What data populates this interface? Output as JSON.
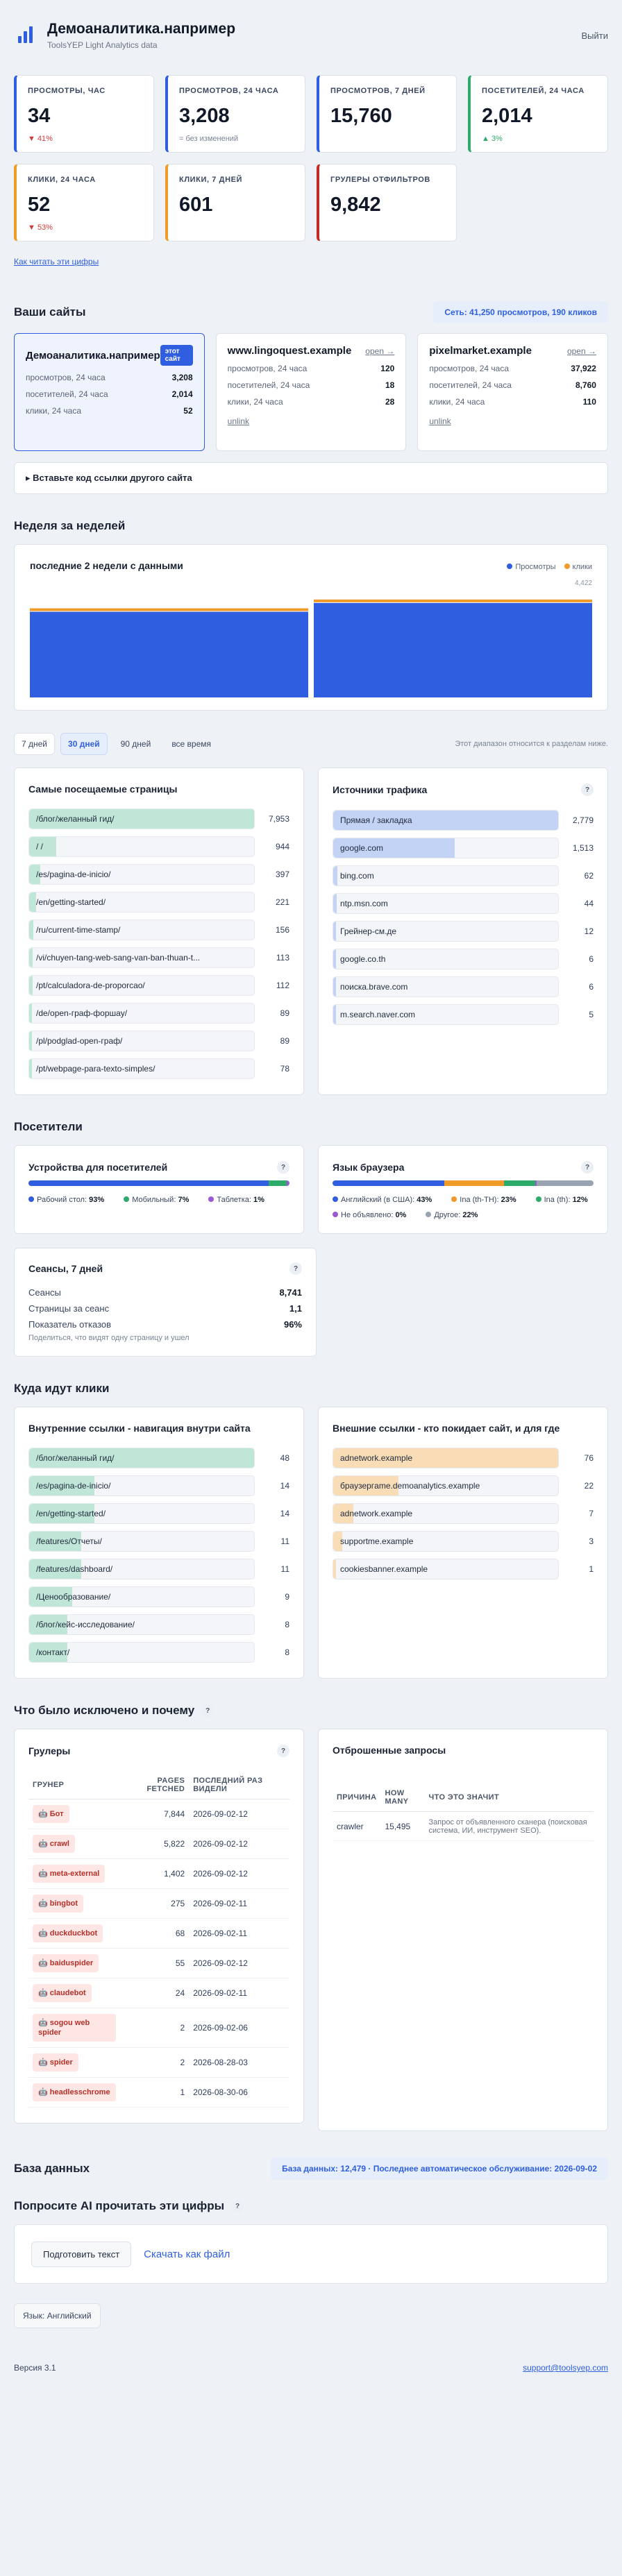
{
  "header": {
    "brand": "Демоаналитика.например",
    "sub": "ToolsYEP Light Analytics data",
    "logout": "Выйти"
  },
  "kpis": [
    {
      "label": "ПРОСМОТРЫ, ЧАС",
      "value": "34",
      "delta": "▼ 41%",
      "trend": "down",
      "accent": "#2f5fe0"
    },
    {
      "label": "ПРОСМОТРОВ, 24 ЧАСА",
      "value": "3,208",
      "delta": "= без изменений",
      "trend": "flat",
      "accent": "#2f5fe0"
    },
    {
      "label": "ПРОСМОТРОВ, 7 ДНЕЙ",
      "value": "15,760",
      "delta": "",
      "trend": "none",
      "accent": "#2f5fe0"
    },
    {
      "label": "ПОСЕТИТЕЛЕЙ, 24 ЧАСА",
      "value": "2,014",
      "delta": "▲ 3%",
      "trend": "up",
      "accent": "#2eaa6a"
    },
    {
      "label": "КЛИКИ, 24 ЧАСА",
      "value": "52",
      "delta": "▼ 53%",
      "trend": "down",
      "accent": "#f09a2a"
    },
    {
      "label": "КЛИКИ, 7 ДНЕЙ",
      "value": "601",
      "delta": "",
      "trend": "none",
      "accent": "#f09a2a"
    },
    {
      "label": "ГРУЛЕРЫ ОТФИЛЬТРОВ",
      "value": "9,842",
      "delta": "",
      "trend": "none",
      "accent": "#c62828"
    }
  ],
  "how_link": "Как читать эти цифры",
  "sites": {
    "title": "Ваши сайты",
    "network": "Сеть: 41,250 просмотров, 190 кликов",
    "items": [
      {
        "name": "Демоаналитика.например",
        "badge": "этот сайт",
        "rows": [
          [
            "просмотров, 24 часа",
            "3,208"
          ],
          [
            "посетителей, 24 часа",
            "2,014"
          ],
          [
            "клики, 24 часа",
            "52"
          ]
        ]
      },
      {
        "name": "www.lingoquest.example",
        "open": "open →",
        "rows": [
          [
            "просмотров, 24 часа",
            "120"
          ],
          [
            "посетителей, 24 часа",
            "18"
          ],
          [
            "клики, 24 часа",
            "28"
          ]
        ],
        "unlink": "unlink"
      },
      {
        "name": "pixelmarket.example",
        "open": "open →",
        "rows": [
          [
            "просмотров, 24 часа",
            "37,922"
          ],
          [
            "посетителей, 24 часа",
            "8,760"
          ],
          [
            "клики, 24 часа",
            "110"
          ]
        ],
        "unlink": "unlink"
      }
    ],
    "embed": "▸ Вставьте код ссылки другого сайта"
  },
  "week": {
    "title": "Неделя за неделей",
    "chart_title": "последние 2 недели с данными",
    "legend_views": "Просмотры",
    "legend_clicks": "клики",
    "ymax": "4,422"
  },
  "chart_data": {
    "type": "bar",
    "categories": [
      "",
      ""
    ],
    "series": [
      {
        "name": "Просмотры",
        "values": [
          3900,
          4300
        ]
      },
      {
        "name": "клики",
        "values": [
          95,
          110
        ]
      }
    ],
    "ylim": [
      0,
      4422
    ]
  },
  "range": {
    "tabs": [
      "7 дней",
      "30 дней",
      "90 дней",
      "все время"
    ],
    "active": 1,
    "note": "Этот диапазон относится к разделам ниже."
  },
  "pages": {
    "title": "Самые посещаемые страницы",
    "rows": [
      {
        "label": "/блог/желанный гид/",
        "value": "7,953",
        "pct": 100
      },
      {
        "label": "/ /",
        "value": "944",
        "pct": 12
      },
      {
        "label": "/es/pagina-de-inicio/",
        "value": "397",
        "pct": 5
      },
      {
        "label": "/en/getting-started/",
        "value": "221",
        "pct": 3
      },
      {
        "label": "/ru/current-time-stamp/",
        "value": "156",
        "pct": 2
      },
      {
        "label": "/vi/chuyen-tang-web-sang-van-ban-thuan-t...",
        "value": "113",
        "pct": 1.5
      },
      {
        "label": "/pt/calculadora-de-proporcao/",
        "value": "112",
        "pct": 1.4
      },
      {
        "label": "/de/open-граф-форшау/",
        "value": "89",
        "pct": 1.1
      },
      {
        "label": "/pl/podglad-open-граф/",
        "value": "89",
        "pct": 1.1
      },
      {
        "label": "/pt/webpage-para-texto-simples/",
        "value": "78",
        "pct": 1
      }
    ]
  },
  "sources": {
    "title": "Источники трафика",
    "help": "?",
    "rows": [
      {
        "label": "Прямая / закладка",
        "value": "2,779",
        "pct": 100
      },
      {
        "label": "google.com",
        "value": "1,513",
        "pct": 54
      },
      {
        "label": "bing.com",
        "value": "62",
        "pct": 2
      },
      {
        "label": "ntp.msn.com",
        "value": "44",
        "pct": 1.6
      },
      {
        "label": "Грейнер-см.де",
        "value": "12",
        "pct": 0.5
      },
      {
        "label": "google.co.th",
        "value": "6",
        "pct": 0.3
      },
      {
        "label": "поиска.brave.com",
        "value": "6",
        "pct": 0.3
      },
      {
        "label": "m.search.naver.com",
        "value": "5",
        "pct": 0.2
      }
    ]
  },
  "visitors": {
    "title": "Посетители",
    "devices": {
      "title": "Устройства для посетителей",
      "help": "?",
      "segments": [
        {
          "label": "Рабочий стол:",
          "pct": "93%",
          "value": 93,
          "color": "#2f5fe0"
        },
        {
          "label": "Мобильный:",
          "pct": "7%",
          "value": 7,
          "color": "#2eaa6a"
        },
        {
          "label": "Таблетка:",
          "pct": "1%",
          "value": 1,
          "color": "#9b59d0"
        }
      ]
    },
    "langs": {
      "title": "Язык браузера",
      "help": "?",
      "segments": [
        {
          "label": "Английский (в США):",
          "pct": "43%",
          "value": 43,
          "color": "#2f5fe0"
        },
        {
          "label": "Ina (th-TH):",
          "pct": "23%",
          "value": 23,
          "color": "#f09a2a"
        },
        {
          "label": "Ina (th):",
          "pct": "12%",
          "value": 12,
          "color": "#2eaa6a"
        },
        {
          "label": "Не объявлено:",
          "pct": "0%",
          "value": 0.5,
          "color": "#9b59d0"
        },
        {
          "label": "Другое:",
          "pct": "22%",
          "value": 22,
          "color": "#9aa3b2"
        }
      ]
    },
    "sessions": {
      "title": "Сеансы, 7 дней",
      "help": "?",
      "rows": [
        [
          "Сеансы",
          "8,741"
        ],
        [
          "Страницы за сеанс",
          "1,1"
        ],
        [
          "Показатель отказов",
          "96%"
        ]
      ],
      "note": "Поделиться, что видят одну страницу и ушел"
    }
  },
  "clicks": {
    "title": "Куда идут клики",
    "internal": {
      "title": "Внутренние ссылки - навигация внутри сайта",
      "rows": [
        {
          "label": "/блог/желанный гид/",
          "value": "48",
          "pct": 100
        },
        {
          "label": "/es/pagina-de-inicio/",
          "value": "14",
          "pct": 29
        },
        {
          "label": "/en/getting-started/",
          "value": "14",
          "pct": 29
        },
        {
          "label": "/features/Отчеты/",
          "value": "11",
          "pct": 23
        },
        {
          "label": "/features/dashboard/",
          "value": "11",
          "pct": 23
        },
        {
          "label": "/Ценообразование/",
          "value": "9",
          "pct": 19
        },
        {
          "label": "/блог/кейс-исследование/",
          "value": "8",
          "pct": 17
        },
        {
          "label": "/контакт/",
          "value": "8",
          "pct": 17
        }
      ]
    },
    "external": {
      "title": "Внешние ссылки - кто покидает сайт, и для где",
      "rows": [
        {
          "label": "adnetwork.example",
          "value": "76",
          "pct": 100
        },
        {
          "label": "браузергame.demoanalytics.example",
          "value": "22",
          "pct": 29
        },
        {
          "label": "adnetwork.example",
          "value": "7",
          "pct": 9
        },
        {
          "label": "supportme.example",
          "value": "3",
          "pct": 4
        },
        {
          "label": "cookiesbanner.example",
          "value": "1",
          "pct": 1.3
        }
      ]
    }
  },
  "excluded": {
    "title": "Что было исключено и почему",
    "help": "?",
    "bots": {
      "title": "Грулеры",
      "help": "?",
      "headers": [
        "ГРУНЕР",
        "PAGES FETCHED",
        "ПОСЛЕДНИЙ РАЗ ВИДЕЛИ"
      ],
      "rows": [
        [
          "🤖 Бот",
          "7,844",
          "2026-09-02-12"
        ],
        [
          "🤖 crawl",
          "5,822",
          "2026-09-02-12"
        ],
        [
          "🤖 meta-external",
          "1,402",
          "2026-09-02-12"
        ],
        [
          "🤖 bingbot",
          "275",
          "2026-09-02-11"
        ],
        [
          "🤖 duckduckbot",
          "68",
          "2026-09-02-11"
        ],
        [
          "🤖 baiduspider",
          "55",
          "2026-09-02-12"
        ],
        [
          "🤖 claudebot",
          "24",
          "2026-09-02-11"
        ],
        [
          "🤖 sogou web spider",
          "2",
          "2026-09-02-06"
        ],
        [
          "🤖 spider",
          "2",
          "2026-08-28-03"
        ],
        [
          "🤖 headlesschrome",
          "1",
          "2026-08-30-06"
        ]
      ]
    },
    "rejected": {
      "title": "Отброшенные запросы",
      "headers": [
        "ПРИЧИНА",
        "HOW MANY",
        "ЧТО ЭТО ЗНАЧИТ"
      ],
      "rows": [
        [
          "crawler",
          "15,495",
          "Запрос от объявленного сканера (поисковая система, ИИ, инструмент SEO)."
        ]
      ]
    }
  },
  "db": {
    "title": "База данных",
    "status": "База данных: 12,479 · Последнее автоматическое обслуживание: 2026-09-02"
  },
  "ai": {
    "title": "Попросите AI прочитать эти цифры",
    "help": "?",
    "prepare": "Подготовить текст",
    "download": "Скачать как файл"
  },
  "language": "Язык: Английский",
  "footer": {
    "version": "Версия 3.1",
    "email": "support@toolsyep.com"
  }
}
